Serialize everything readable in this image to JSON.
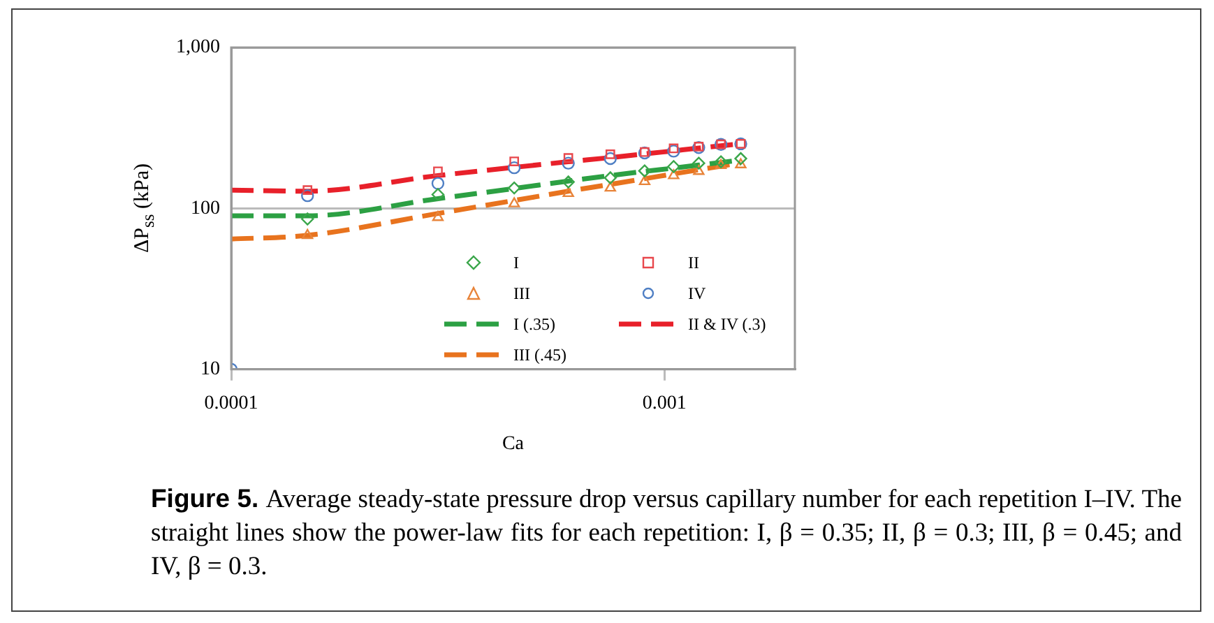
{
  "chart_data": {
    "type": "scatter",
    "xlabel": "Ca",
    "ylabel": "ΔP$_{ss}$ (kPa)",
    "log": "xy",
    "xlim": [
      0.0001,
      0.002
    ],
    "xticks": [
      {
        "value": 0.0001,
        "label": "0.0001"
      },
      {
        "value": 0.001,
        "label": "0.001"
      }
    ],
    "ylim": [
      10,
      1000
    ],
    "yticks": [
      10,
      100,
      {
        "value": 1000,
        "label": "1,000"
      }
    ],
    "grid": "y",
    "legend": "bottom right",
    "series": [
      {
        "name": "I",
        "type": "scatter",
        "marker": "diamond",
        "color": "#3aa64a",
        "x": [
          0.00015,
          0.0003,
          0.00045,
          0.0006,
          0.00075,
          0.0009,
          0.00105,
          0.0012,
          0.00135,
          0.0015
        ],
        "values": [
          86,
          122,
          134,
          146,
          155,
          171,
          182,
          191,
          195,
          204
        ]
      },
      {
        "name": "II",
        "type": "scatter",
        "marker": "square",
        "color": "#e8474c",
        "x": [
          0.00015,
          0.0003,
          0.00045,
          0.0006,
          0.00075,
          0.0009,
          0.00105,
          0.0012,
          0.00135,
          0.0015
        ],
        "values": [
          130,
          170,
          196,
          206,
          217,
          224,
          236,
          242,
          250,
          252
        ]
      },
      {
        "name": "III",
        "type": "scatter",
        "marker": "triangle",
        "color": "#e8843a",
        "x": [
          0.00015,
          0.0003,
          0.00045,
          0.0006,
          0.00075,
          0.0009,
          0.00105,
          0.0012,
          0.00135,
          0.0015
        ],
        "values": [
          68,
          88,
          107,
          124,
          134,
          147,
          160,
          170,
          185,
          187
        ]
      },
      {
        "name": "IV",
        "type": "scatter",
        "marker": "circle",
        "color": "#4f7fc4",
        "x": [
          0.0001,
          0.00015,
          0.0003,
          0.00045,
          0.0006,
          0.00075,
          0.0009,
          0.00105,
          0.0012,
          0.00135,
          0.0015
        ],
        "values": [
          10,
          120,
          143,
          179,
          191,
          204,
          221,
          227,
          239,
          250,
          252
        ]
      },
      {
        "name": "I (.35)",
        "type": "line",
        "marker": "none",
        "line_style": "dashed",
        "color": "#2ca043",
        "x": [
          0.0001,
          0.00015,
          0.0003,
          0.00045,
          0.0006,
          0.00075,
          0.0009,
          0.00105,
          0.0012,
          0.00135,
          0.0015
        ],
        "values": [
          90,
          90,
          115,
          133,
          148,
          160,
          170,
          178,
          186,
          193,
          200
        ]
      },
      {
        "name": "II & IV (.3)",
        "type": "line",
        "marker": "none",
        "line_style": "dashed",
        "color": "#e8202a",
        "x": [
          0.0001,
          0.00015,
          0.0003,
          0.00045,
          0.0006,
          0.00075,
          0.0009,
          0.00105,
          0.0012,
          0.00135,
          0.0015
        ],
        "values": [
          130,
          128,
          160,
          180,
          195,
          207,
          218,
          228,
          237,
          245,
          252
        ]
      },
      {
        "name": "III (.45)",
        "type": "line",
        "marker": "none",
        "line_style": "dashed",
        "color": "#e8731e",
        "x": [
          0.0001,
          0.00015,
          0.0003,
          0.00045,
          0.0006,
          0.00075,
          0.0009,
          0.00105,
          0.0012,
          0.00135,
          0.0015
        ],
        "values": [
          64.5,
          68,
          93,
          112,
          128,
          141,
          153,
          164,
          174,
          183,
          192
        ]
      }
    ],
    "annotations": [
      "Figure 5.",
      "Average steady-state pressure drop versus capillary number for each repetition I–IV. The straight lines show the power-law fits for each repetition: I, β = 0.35; II, β = 0.3; III, β = 0.45; and IV, β = 0.3."
    ]
  }
}
